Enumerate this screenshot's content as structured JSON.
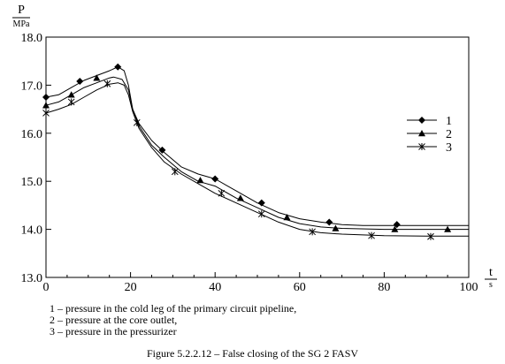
{
  "chart_data": {
    "type": "line",
    "title": "",
    "ylabel": "P",
    "yunit": "MPa",
    "xlabel": "t",
    "xunit": "s",
    "xlim": [
      0,
      100
    ],
    "ylim": [
      13.0,
      18.0
    ],
    "x_ticks": [
      0,
      20,
      40,
      60,
      80,
      100
    ],
    "x_tick_labels": [
      "0",
      "20",
      "40",
      "60",
      "80",
      "100"
    ],
    "y_ticks": [
      13.0,
      14.0,
      15.0,
      16.0,
      17.0,
      18.0
    ],
    "y_tick_labels": [
      "13.0",
      "14.0",
      "15.0",
      "16.0",
      "17.0",
      "18.0"
    ],
    "grid": false,
    "legend_position": "right",
    "series": [
      {
        "name": "1",
        "marker": "diamond",
        "curve": [
          [
            0,
            16.75
          ],
          [
            3,
            16.8
          ],
          [
            6,
            16.95
          ],
          [
            9,
            17.1
          ],
          [
            12,
            17.2
          ],
          [
            15,
            17.3
          ],
          [
            17,
            17.38
          ],
          [
            18.5,
            17.3
          ],
          [
            19.5,
            17.0
          ],
          [
            20.5,
            16.5
          ],
          [
            22,
            16.2
          ],
          [
            25,
            15.85
          ],
          [
            28,
            15.6
          ],
          [
            32,
            15.3
          ],
          [
            36,
            15.15
          ],
          [
            40,
            15.05
          ],
          [
            45,
            14.8
          ],
          [
            50,
            14.55
          ],
          [
            55,
            14.35
          ],
          [
            60,
            14.22
          ],
          [
            65,
            14.15
          ],
          [
            70,
            14.1
          ],
          [
            75,
            14.08
          ],
          [
            80,
            14.08
          ],
          [
            85,
            14.08
          ],
          [
            90,
            14.08
          ],
          [
            95,
            14.08
          ],
          [
            100,
            14.08
          ]
        ],
        "markers": [
          [
            0,
            16.75
          ],
          [
            8,
            17.08
          ],
          [
            17,
            17.38
          ],
          [
            27.5,
            15.65
          ],
          [
            40,
            15.05
          ],
          [
            51,
            14.55
          ],
          [
            67,
            14.15
          ],
          [
            83,
            14.1
          ]
        ]
      },
      {
        "name": "2",
        "marker": "triangle",
        "curve": [
          [
            0,
            16.58
          ],
          [
            3,
            16.65
          ],
          [
            6,
            16.8
          ],
          [
            9,
            16.95
          ],
          [
            12,
            17.05
          ],
          [
            15,
            17.15
          ],
          [
            16,
            17.17
          ],
          [
            18,
            17.12
          ],
          [
            19.5,
            16.9
          ],
          [
            20.5,
            16.5
          ],
          [
            22,
            16.15
          ],
          [
            25,
            15.75
          ],
          [
            28,
            15.5
          ],
          [
            32,
            15.2
          ],
          [
            36,
            15.0
          ],
          [
            40,
            14.9
          ],
          [
            45,
            14.65
          ],
          [
            50,
            14.45
          ],
          [
            55,
            14.25
          ],
          [
            60,
            14.12
          ],
          [
            65,
            14.05
          ],
          [
            70,
            14.02
          ],
          [
            80,
            14.0
          ],
          [
            90,
            14.0
          ],
          [
            95,
            14.0
          ],
          [
            100,
            14.0
          ]
        ],
        "markers": [
          [
            0,
            16.58
          ],
          [
            6,
            16.8
          ],
          [
            12,
            17.15
          ],
          [
            36.5,
            15.02
          ],
          [
            46,
            14.65
          ],
          [
            57,
            14.25
          ],
          [
            68.5,
            14.02
          ],
          [
            82.5,
            14.0
          ],
          [
            95,
            14.0
          ]
        ]
      },
      {
        "name": "3",
        "marker": "star",
        "curve": [
          [
            0,
            16.42
          ],
          [
            3,
            16.5
          ],
          [
            6,
            16.6
          ],
          [
            9,
            16.75
          ],
          [
            12,
            16.9
          ],
          [
            15,
            17.02
          ],
          [
            17,
            17.05
          ],
          [
            18.5,
            17.0
          ],
          [
            19.5,
            16.8
          ],
          [
            20.5,
            16.45
          ],
          [
            22,
            16.1
          ],
          [
            25,
            15.7
          ],
          [
            28,
            15.4
          ],
          [
            32,
            15.15
          ],
          [
            36,
            14.95
          ],
          [
            40,
            14.75
          ],
          [
            45,
            14.55
          ],
          [
            50,
            14.35
          ],
          [
            55,
            14.15
          ],
          [
            60,
            14.0
          ],
          [
            65,
            13.93
          ],
          [
            70,
            13.9
          ],
          [
            80,
            13.87
          ],
          [
            90,
            13.86
          ],
          [
            100,
            13.86
          ]
        ],
        "markers": [
          [
            0,
            16.42
          ],
          [
            6,
            16.65
          ],
          [
            14.5,
            17.03
          ],
          [
            21.5,
            16.22
          ],
          [
            30.5,
            15.2
          ],
          [
            41.5,
            14.75
          ],
          [
            51,
            14.32
          ],
          [
            63,
            13.95
          ],
          [
            77,
            13.87
          ],
          [
            91,
            13.85
          ]
        ]
      }
    ]
  },
  "caption_lines": [
    "1 – pressure in the cold leg of the primary circuit pipeline,",
    "2 – pressure at the core outlet,",
    "3 – pressure in the pressurizer"
  ],
  "figure_caption": "Figure 5.2.2.12 – False closing of the SG 2 FASV"
}
